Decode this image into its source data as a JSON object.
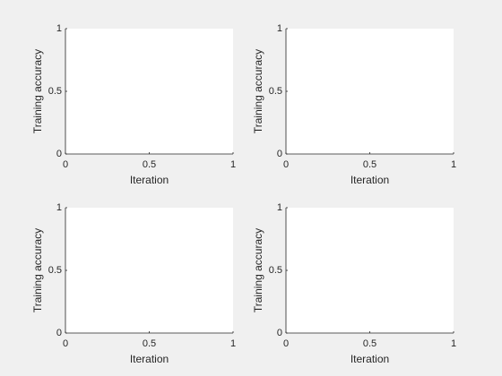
{
  "chart_data": [
    {
      "type": "line",
      "xlabel": "Iteration",
      "ylabel": "Training accuracy",
      "xlim": [
        0,
        1
      ],
      "ylim": [
        0,
        1
      ],
      "xticks": [
        0,
        0.5,
        1
      ],
      "yticks": [
        0,
        0.5,
        1
      ]
    },
    {
      "type": "line",
      "xlabel": "Iteration",
      "ylabel": "Training accuracy",
      "xlim": [
        0,
        1
      ],
      "ylim": [
        0,
        1
      ],
      "xticks": [
        0,
        0.5,
        1
      ],
      "yticks": [
        0,
        0.5,
        1
      ]
    },
    {
      "type": "line",
      "xlabel": "Iteration",
      "ylabel": "Training accuracy",
      "xlim": [
        0,
        1
      ],
      "ylim": [
        0,
        1
      ],
      "xticks": [
        0,
        0.5,
        1
      ],
      "yticks": [
        0,
        0.5,
        1
      ]
    },
    {
      "type": "line",
      "xlabel": "Iteration",
      "ylabel": "Training accuracy",
      "xlim": [
        0,
        1
      ],
      "ylim": [
        0,
        1
      ],
      "xticks": [
        0,
        0.5,
        1
      ],
      "yticks": [
        0,
        0.5,
        1
      ]
    }
  ]
}
